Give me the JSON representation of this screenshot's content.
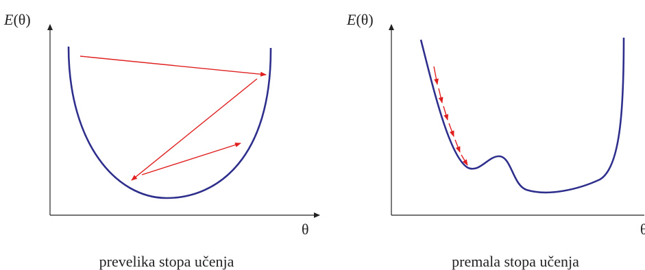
{
  "panels": [
    {
      "y_label_var": "E",
      "y_label_arg": "(θ)",
      "x_label": "θ",
      "caption": "prevelika stopa učenja"
    },
    {
      "y_label_var": "E",
      "y_label_arg": "(θ)",
      "x_label": "θ",
      "caption": "premala stopa učenja"
    }
  ],
  "colors": {
    "axis": "#222222",
    "curve": "#2e2e8c",
    "arrow": "#e01f1f"
  }
}
